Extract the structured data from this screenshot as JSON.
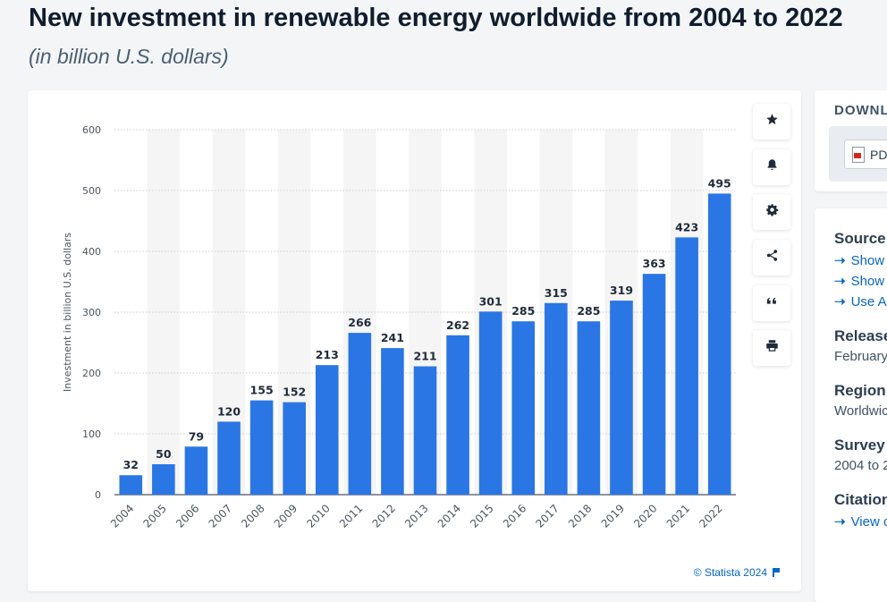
{
  "page": {
    "title": "New investment in renewable energy worldwide from 2004 to 2022",
    "subtitle": "(in billion U.S. dollars)"
  },
  "chart_data": {
    "type": "bar",
    "categories": [
      "2004",
      "2005",
      "2006",
      "2007",
      "2008",
      "2009",
      "2010",
      "2011",
      "2012",
      "2013",
      "2014",
      "2015",
      "2016",
      "2017",
      "2018",
      "2019",
      "2020",
      "2021",
      "2022"
    ],
    "values": [
      32,
      50,
      79,
      120,
      155,
      152,
      213,
      266,
      241,
      211,
      262,
      301,
      285,
      315,
      285,
      319,
      363,
      423,
      495
    ],
    "ylabel": "Investment in billion U.S. dollars",
    "xlabel": "",
    "ylim": [
      0,
      600
    ],
    "yticks": [
      0,
      100,
      200,
      300,
      400,
      500,
      600
    ],
    "grid": true,
    "bar_color": "#2b76e5",
    "value_labels": true
  },
  "chart_credit": "© Statista 2024",
  "tools": [
    {
      "name": "star-icon"
    },
    {
      "name": "bell-icon"
    },
    {
      "name": "gear-icon"
    },
    {
      "name": "share-icon"
    },
    {
      "name": "quote-icon"
    },
    {
      "name": "print-icon"
    }
  ],
  "download": {
    "heading": "DOWNL",
    "pdf_label": "PD"
  },
  "info": {
    "source_label": "Source",
    "source_links": [
      "Show",
      "Show",
      "Use A"
    ],
    "release_label": "Release",
    "release_value": "February",
    "region_label": "Region",
    "region_value": "Worldwic",
    "survey_label": "Survey",
    "survey_value": "2004 to 2",
    "citation_label": "Citation",
    "citation_link": "View c"
  },
  "colors": {
    "accent": "#0666c4",
    "bar": "#2b76e5",
    "title": "#0f1d2e"
  }
}
